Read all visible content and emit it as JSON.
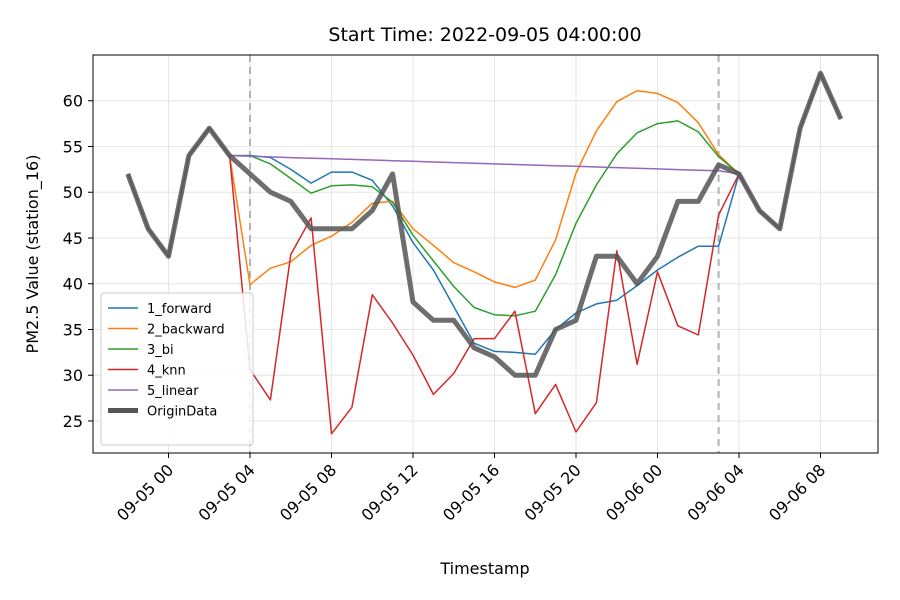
{
  "chart_data": {
    "type": "line",
    "title": "Start Time: 2022-09-05 04:00:00",
    "xlabel": "Timestamp",
    "ylabel": "PM2.5 Value (station_16)",
    "x_ticks": [
      "09-05 00",
      "09-05 04",
      "09-05 08",
      "09-05 12",
      "09-05 16",
      "09-05 20",
      "09-06 00",
      "09-06 04",
      "09-06 08"
    ],
    "y_ticks": [
      25,
      30,
      35,
      40,
      45,
      50,
      55,
      60
    ],
    "ylim": [
      21.5,
      65
    ],
    "grid": true,
    "legend_position": "lower-left",
    "vertical_markers": [
      "2022-09-05 04:00",
      "2022-09-06 03:00"
    ],
    "x": [
      "2022-09-04 22:00",
      "2022-09-04 23:00",
      "2022-09-05 00:00",
      "2022-09-05 01:00",
      "2022-09-05 02:00",
      "2022-09-05 03:00",
      "2022-09-05 04:00",
      "2022-09-05 05:00",
      "2022-09-05 06:00",
      "2022-09-05 07:00",
      "2022-09-05 08:00",
      "2022-09-05 09:00",
      "2022-09-05 10:00",
      "2022-09-05 11:00",
      "2022-09-05 12:00",
      "2022-09-05 13:00",
      "2022-09-05 14:00",
      "2022-09-05 15:00",
      "2022-09-05 16:00",
      "2022-09-05 17:00",
      "2022-09-05 18:00",
      "2022-09-05 19:00",
      "2022-09-05 20:00",
      "2022-09-05 21:00",
      "2022-09-05 22:00",
      "2022-09-05 23:00",
      "2022-09-06 00:00",
      "2022-09-06 01:00",
      "2022-09-06 02:00",
      "2022-09-06 03:00",
      "2022-09-06 04:00",
      "2022-09-06 05:00",
      "2022-09-06 06:00",
      "2022-09-06 07:00",
      "2022-09-06 08:00",
      "2022-09-06 09:00"
    ],
    "series": [
      {
        "name": "1_forward",
        "color": "#1f77b4",
        "values": [
          52,
          46,
          43,
          54,
          57,
          54,
          54,
          53.8,
          52.5,
          51,
          52.2,
          52.2,
          51.3,
          48.5,
          44.5,
          41.5,
          37.5,
          33.5,
          32.6,
          32.5,
          32.3,
          35,
          36.8,
          37.8,
          38.2,
          39.8,
          41.5,
          42.9,
          44.1,
          44.1,
          52,
          48,
          46,
          57,
          63,
          58
        ]
      },
      {
        "name": "2_backward",
        "color": "#ff7f0e",
        "values": [
          52,
          46,
          43,
          54,
          57,
          54,
          39.9,
          41.7,
          42.4,
          44.2,
          45.2,
          46.7,
          48.8,
          49,
          46,
          44.2,
          42.3,
          41.3,
          40.2,
          39.6,
          40.4,
          44.8,
          52.1,
          56.7,
          59.9,
          61.1,
          60.8,
          59.8,
          57.6,
          54.1,
          52,
          48,
          46,
          57,
          63,
          58
        ]
      },
      {
        "name": "3_bi",
        "color": "#2ca02c",
        "values": [
          52,
          46,
          43,
          54,
          57,
          54,
          54,
          53.1,
          51.5,
          49.9,
          50.7,
          50.8,
          50.6,
          48.9,
          45.3,
          42.5,
          39.7,
          37.4,
          36.6,
          36.5,
          37,
          41,
          46.6,
          50.8,
          54.2,
          56.5,
          57.5,
          57.8,
          56.6,
          53.9,
          52,
          48,
          46,
          57,
          63,
          58
        ]
      },
      {
        "name": "4_knn",
        "color": "#d62728",
        "values": [
          52,
          46,
          43,
          54,
          57,
          54,
          30.6,
          27.3,
          43.2,
          47.2,
          23.6,
          26.5,
          38.8,
          35.7,
          32.2,
          27.9,
          30.2,
          34,
          34,
          37,
          25.8,
          29,
          23.8,
          27,
          43.6,
          31.2,
          41.3,
          35.4,
          34.4,
          47.5,
          52,
          48,
          46,
          57,
          63,
          58
        ]
      },
      {
        "name": "5_linear",
        "color": "#9467bd",
        "values": [
          52,
          46,
          43,
          54,
          57,
          54,
          53.93,
          53.86,
          53.79,
          53.72,
          53.66,
          53.59,
          53.52,
          53.45,
          53.38,
          53.31,
          53.24,
          53.17,
          53.1,
          53.03,
          52.97,
          52.9,
          52.83,
          52.76,
          52.69,
          52.62,
          52.55,
          52.48,
          52.41,
          52.34,
          52,
          48,
          46,
          57,
          63,
          58
        ]
      },
      {
        "name": "OriginData",
        "color": "#555555",
        "values": [
          52,
          46,
          43,
          54,
          57,
          54,
          52,
          50,
          49,
          46,
          46,
          46,
          48,
          52,
          38,
          36,
          36,
          33,
          32,
          30,
          30,
          35,
          36,
          43,
          43,
          40,
          43,
          49,
          49,
          53,
          52,
          48,
          46,
          57,
          63,
          58
        ]
      }
    ]
  }
}
